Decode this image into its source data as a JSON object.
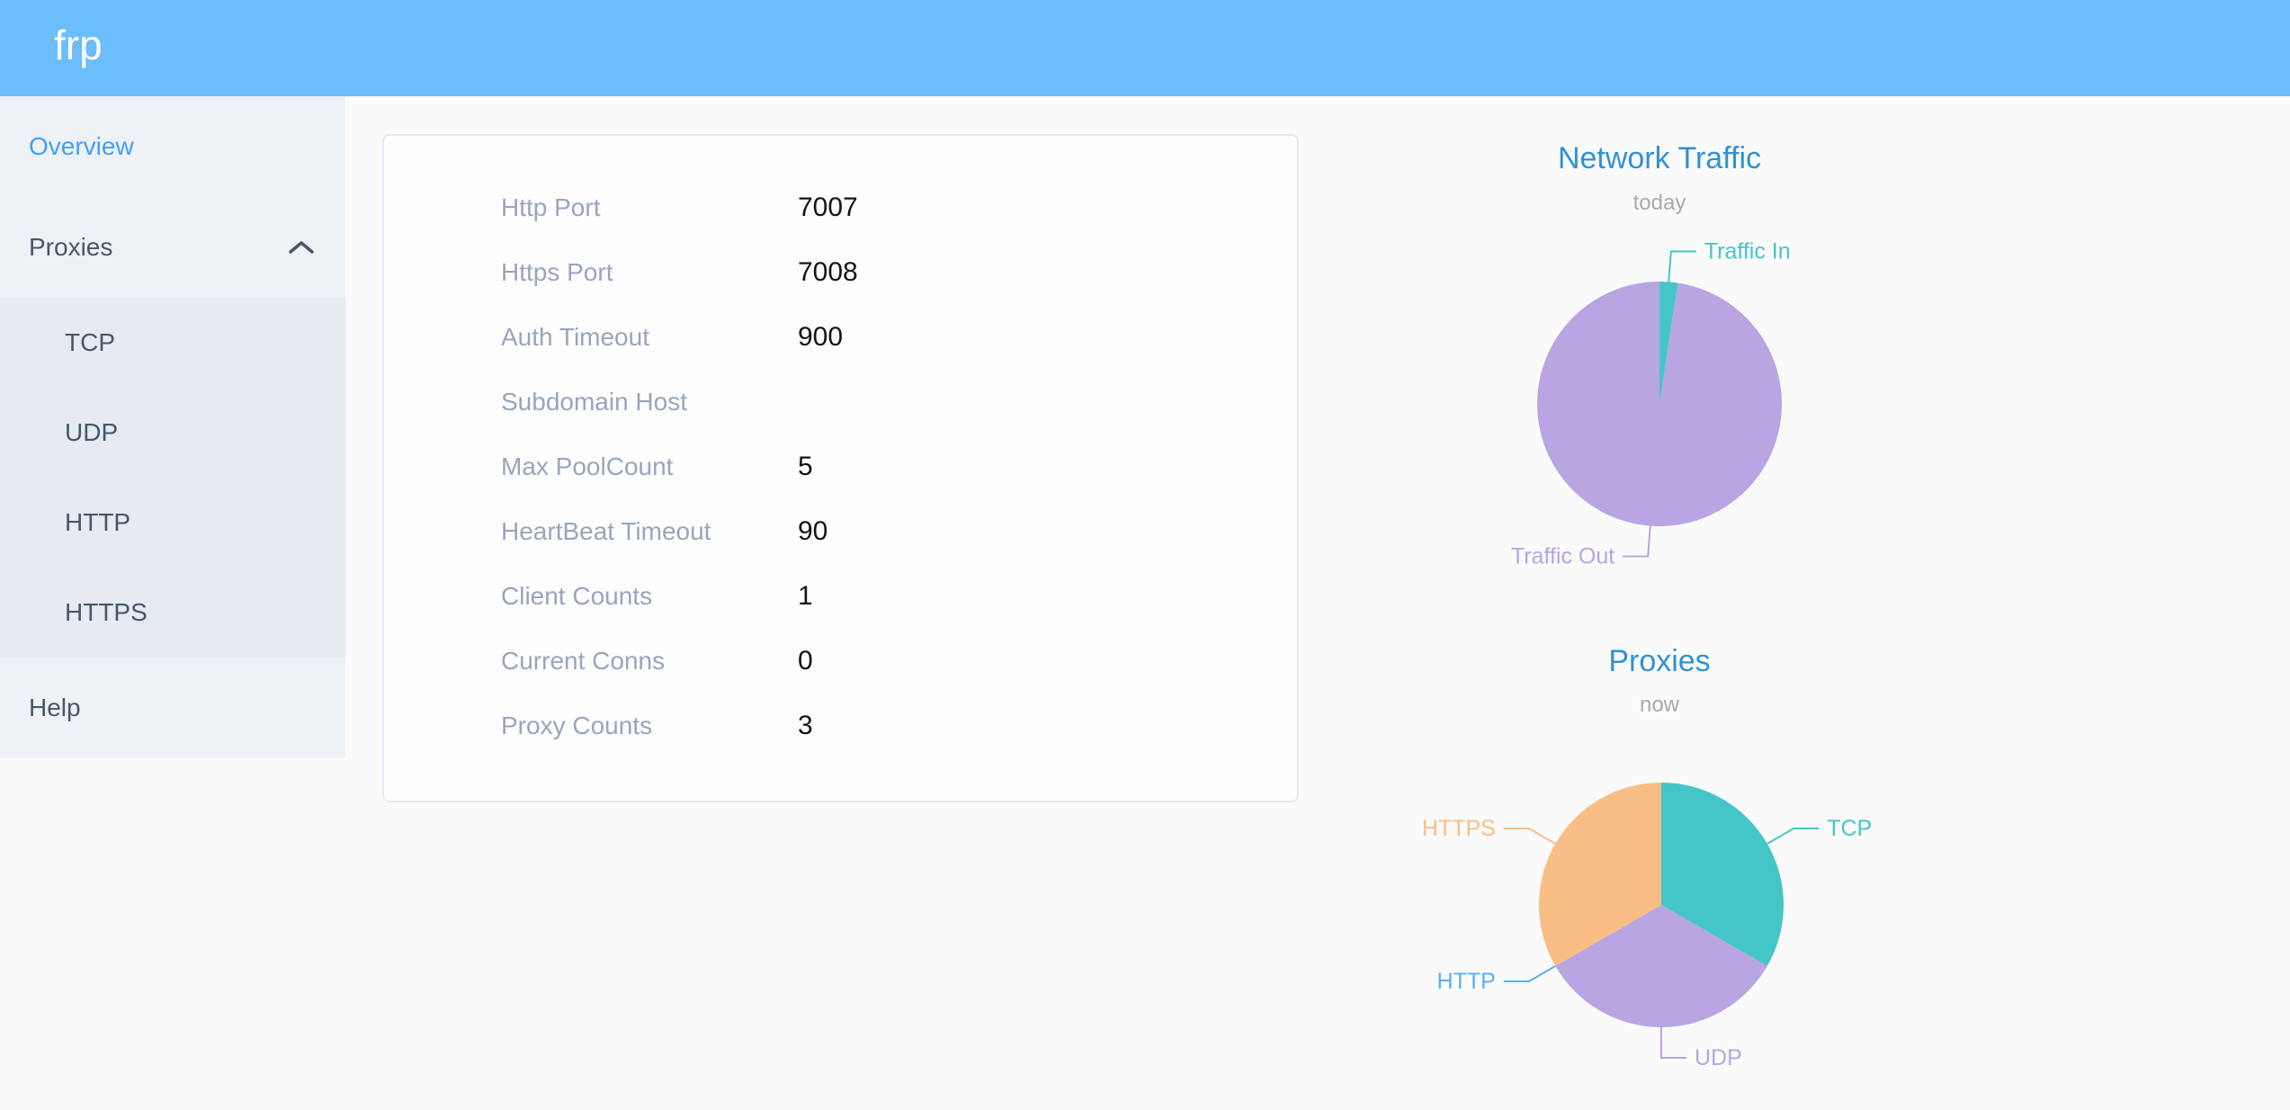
{
  "header": {
    "logo": "frp"
  },
  "sidebar": {
    "items": [
      {
        "label": "Overview",
        "active": true
      },
      {
        "label": "Proxies",
        "expanded": true,
        "children": [
          "TCP",
          "UDP",
          "HTTP",
          "HTTPS"
        ]
      },
      {
        "label": "Help"
      }
    ]
  },
  "overview": {
    "rows": [
      {
        "label": "Http Port",
        "value": "7007"
      },
      {
        "label": "Https Port",
        "value": "7008"
      },
      {
        "label": "Auth Timeout",
        "value": "900"
      },
      {
        "label": "Subdomain Host",
        "value": ""
      },
      {
        "label": "Max PoolCount",
        "value": "5"
      },
      {
        "label": "HeartBeat Timeout",
        "value": "90"
      },
      {
        "label": "Client Counts",
        "value": "1"
      },
      {
        "label": "Current Conns",
        "value": "0"
      },
      {
        "label": "Proxy Counts",
        "value": "3"
      }
    ]
  },
  "chart_data": [
    {
      "type": "pie",
      "title": "Network Traffic",
      "subtitle": "today",
      "legend_position": "none",
      "start_angle": "top-clockwise",
      "series": [
        {
          "name": "Traffic In",
          "percent": 2.4,
          "color": "#45c5c8"
        },
        {
          "name": "Traffic Out",
          "percent": 97.6,
          "color": "#b8a5e1"
        }
      ]
    },
    {
      "type": "pie",
      "title": "Proxies",
      "subtitle": "now",
      "legend_position": "none",
      "start_angle": "top-clockwise",
      "series": [
        {
          "name": "TCP",
          "value": 1,
          "color": "#45c5c8"
        },
        {
          "name": "UDP",
          "value": 1,
          "color": "#b8a5e1"
        },
        {
          "name": "HTTP",
          "value": 0,
          "color": "#5ab1ef"
        },
        {
          "name": "HTTPS",
          "value": 1,
          "color": "#f9be85"
        }
      ]
    }
  ],
  "colors": {
    "header_bg": "#6cbdfc",
    "sidebar_bg": "#eef1f6",
    "submenu_bg": "#e6eaf1",
    "menu_text": "#48576a",
    "menu_active": "#42a0f8",
    "card_border": "#e6eaf2",
    "label_gray": "#9aa5bb",
    "chart_title_blue": "#3191d4",
    "teal": "#45c5c8",
    "purple": "#b8a5e1",
    "http_blue": "#5ab1ef",
    "orange": "#f9be85"
  }
}
